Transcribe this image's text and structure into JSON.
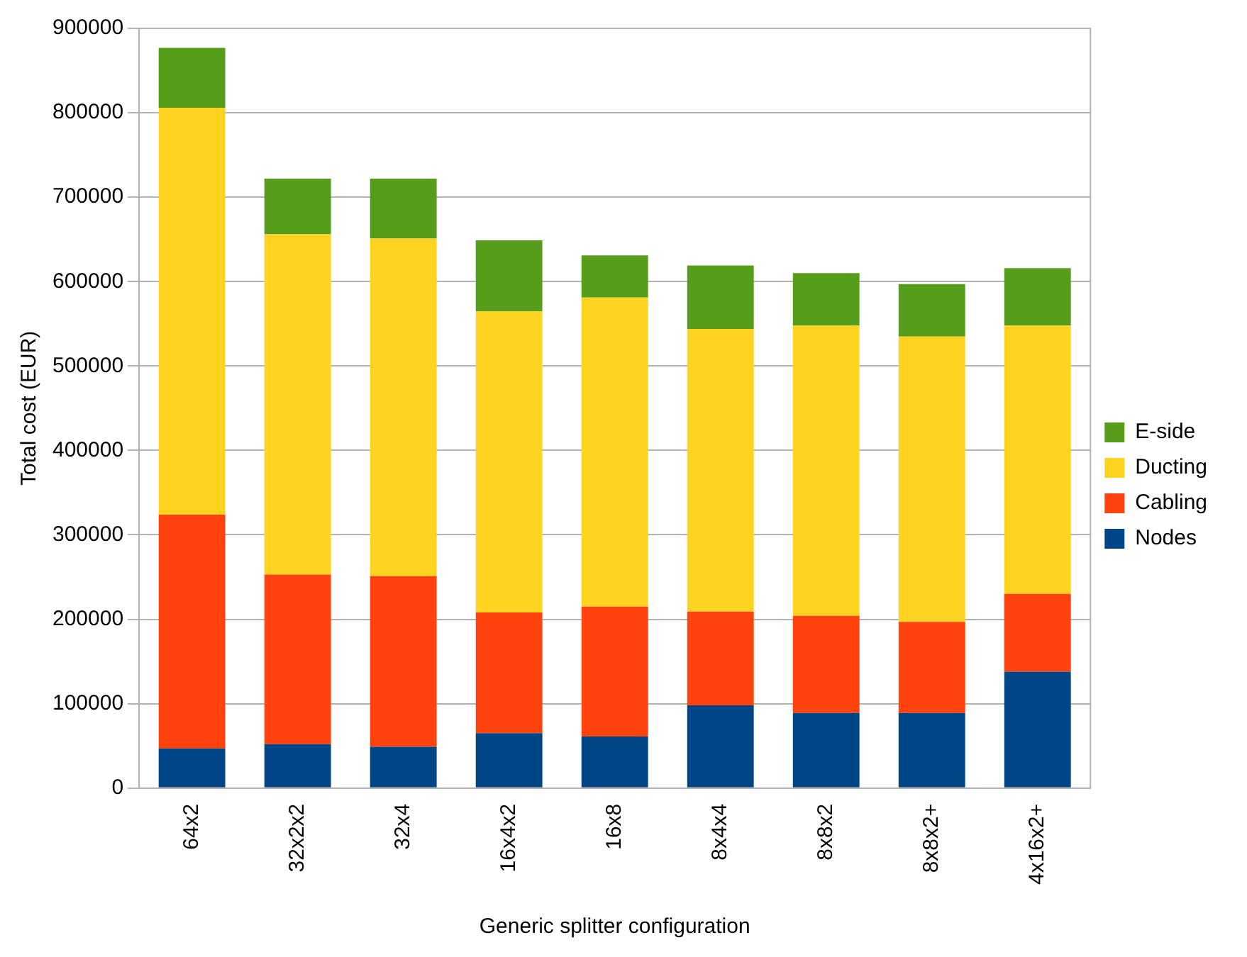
{
  "chart_data": {
    "type": "bar",
    "stacked": true,
    "xlabel": "Generic splitter configuration",
    "ylabel": "Total cost (EUR)",
    "categories": [
      "64x2",
      "32x2x2",
      "32x4",
      "16x4x2",
      "16x8",
      "8x4x4",
      "8x8x2",
      "8x8x2+",
      "4x16x2+"
    ],
    "series": [
      {
        "name": "Nodes",
        "color": "#004586",
        "values": [
          47000,
          52000,
          49000,
          65000,
          61000,
          98000,
          89000,
          89000,
          138000
        ]
      },
      {
        "name": "Cabling",
        "color": "#ff420e",
        "values": [
          277000,
          201000,
          202000,
          143000,
          154000,
          111000,
          115000,
          108000,
          92000
        ]
      },
      {
        "name": "Ducting",
        "color": "#ffd320",
        "values": [
          482000,
          403000,
          400000,
          357000,
          366000,
          335000,
          344000,
          338000,
          318000
        ]
      },
      {
        "name": "E-side",
        "color": "#579d1c",
        "values": [
          71000,
          66000,
          71000,
          84000,
          50000,
          75000,
          62000,
          62000,
          68000
        ]
      }
    ],
    "ylim": [
      0,
      900000
    ],
    "yticks": [
      0,
      100000,
      200000,
      300000,
      400000,
      500000,
      600000,
      700000,
      800000,
      900000
    ],
    "grid": "y",
    "legend": "right"
  }
}
